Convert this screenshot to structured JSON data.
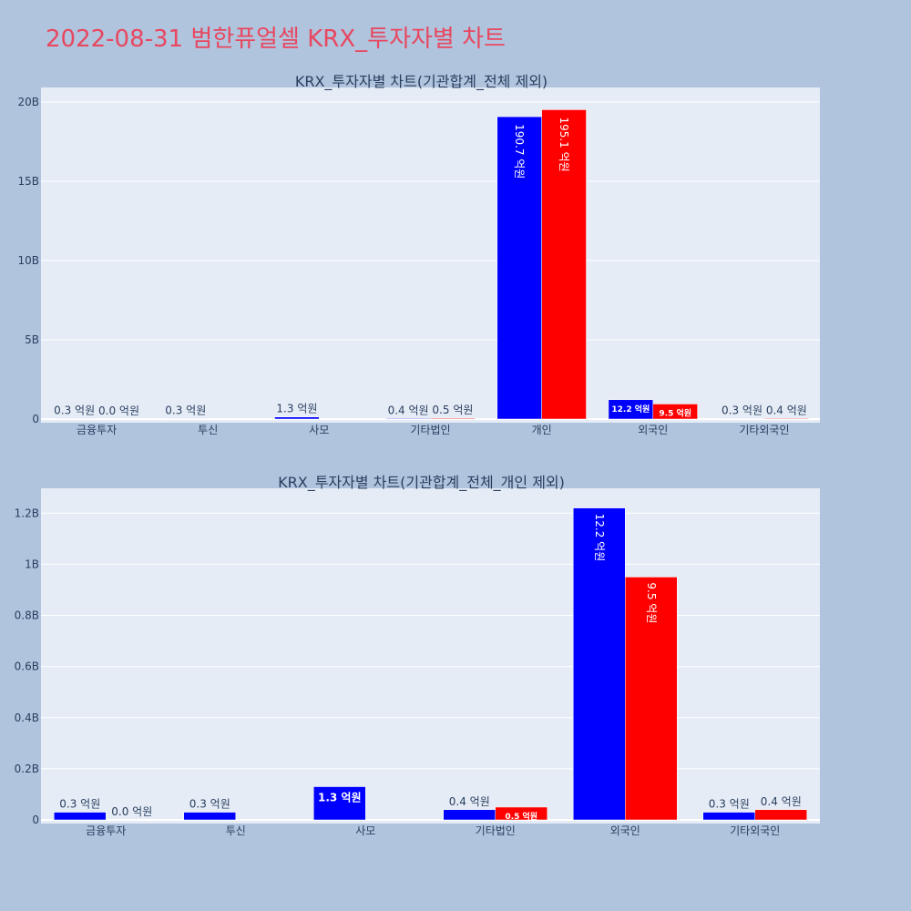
{
  "title": "2022-08-31 범한퓨얼셀 KRX_투자자별 차트",
  "colors": {
    "series1": "#0000ff",
    "series2": "#ff0000",
    "plot_bg": "#e5ecf6",
    "page_bg": "#b0c4de",
    "title": "#e8475f"
  },
  "chart_data": [
    {
      "type": "bar",
      "title": "KRX_투자자별 차트(기관합계_전체 제외)",
      "categories": [
        "금융투자",
        "투신",
        "사모",
        "기타법인",
        "개인",
        "외국인",
        "기타외국인"
      ],
      "series": [
        {
          "values": [
            0.03,
            0.03,
            0.13,
            0.04,
            19.07,
            1.22,
            0.03
          ],
          "labels": [
            "0.3 억원",
            "0.3 억원",
            "1.3 억원",
            "0.4 억원",
            "190.7 억원",
            "12.2 억원",
            "0.3 억원"
          ]
        },
        {
          "values": [
            0.0,
            0.0,
            0.0,
            0.05,
            19.51,
            0.95,
            0.04
          ],
          "labels": [
            "0.0 억원",
            "",
            "",
            "0.5 억원",
            "195.1 억원",
            "9.5 억원",
            "0.4 억원"
          ]
        }
      ],
      "yticks": [
        0,
        5,
        10,
        15,
        20
      ],
      "ytick_labels": [
        "0",
        "5B",
        "10B",
        "15B",
        "20B"
      ],
      "ylim": [
        0,
        20.8
      ],
      "unit": "B"
    },
    {
      "type": "bar",
      "title": "KRX_투자자별 차트(기관합계_전체_개인 제외)",
      "categories": [
        "금융투자",
        "투신",
        "사모",
        "기타법인",
        "외국인",
        "기타외국인"
      ],
      "series": [
        {
          "values": [
            0.03,
            0.03,
            0.13,
            0.04,
            1.22,
            0.03
          ],
          "labels": [
            "0.3 억원",
            "0.3 억원",
            "1.3 억원",
            "0.4 억원",
            "12.2 억원",
            "0.3 억원"
          ]
        },
        {
          "values": [
            0.0,
            0.0,
            0.0,
            0.05,
            0.95,
            0.04
          ],
          "labels": [
            "0.0 억원",
            "",
            "",
            "0.5 억원",
            "9.5 억원",
            "0.4 억원"
          ]
        }
      ],
      "yticks": [
        0,
        0.2,
        0.4,
        0.6,
        0.8,
        1.0,
        1.2
      ],
      "ytick_labels": [
        "0",
        "0.2B",
        "0.4B",
        "0.6B",
        "0.8B",
        "1B",
        "1.2B"
      ],
      "ylim": [
        0,
        1.29
      ],
      "unit": "B"
    }
  ]
}
